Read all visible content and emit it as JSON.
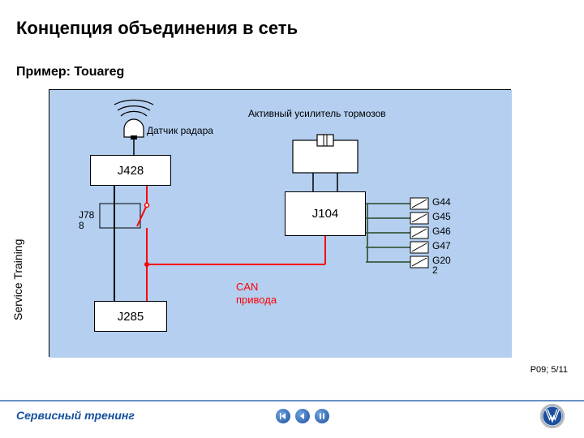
{
  "title": "Концепция объединения в сеть",
  "subtitle": "Пример: Touareg",
  "vertical_label": "Service Training",
  "footer": "Сервисный тренинг",
  "page_number": "P09; 5/11",
  "diagram": {
    "background": "#b4cff0",
    "radar_label": "Датчик радара",
    "brake_label": "Активный усилитель тормозов",
    "can_label": "CAN\nпривода",
    "nodes": {
      "j428": "J428",
      "j788": "J78\n8",
      "j285": "J285",
      "j104": "J104"
    },
    "sensors": [
      "G44",
      "G45",
      "G46",
      "G47",
      "G20\n2"
    ],
    "colors": {
      "wire_black": "#000000",
      "wire_red": "#ff0000",
      "sensor_wire": "#3a5a3f",
      "box_fill": "#ffffff",
      "box_border": "#000000"
    }
  },
  "nav": {
    "buttons": [
      "back-start",
      "back",
      "pause"
    ]
  }
}
